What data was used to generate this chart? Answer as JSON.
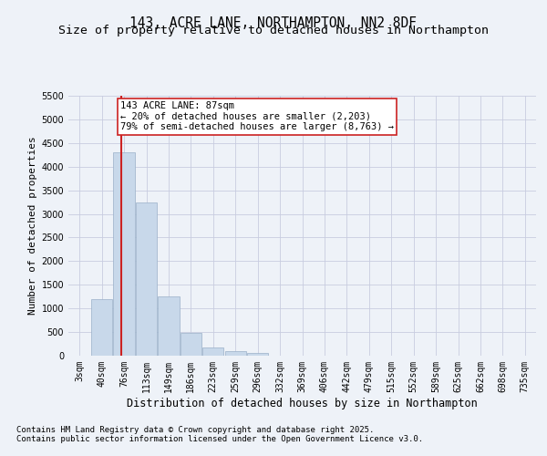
{
  "title": "143, ACRE LANE, NORTHAMPTON, NN2 8DF",
  "subtitle": "Size of property relative to detached houses in Northampton",
  "xlabel": "Distribution of detached houses by size in Northampton",
  "ylabel": "Number of detached properties",
  "categories": [
    "3sqm",
    "40sqm",
    "76sqm",
    "113sqm",
    "149sqm",
    "186sqm",
    "223sqm",
    "259sqm",
    "296sqm",
    "332sqm",
    "369sqm",
    "406sqm",
    "442sqm",
    "479sqm",
    "515sqm",
    "552sqm",
    "589sqm",
    "625sqm",
    "662sqm",
    "698sqm",
    "735sqm"
  ],
  "values": [
    0,
    1200,
    4300,
    3250,
    1250,
    490,
    170,
    90,
    50,
    0,
    0,
    0,
    0,
    0,
    0,
    0,
    0,
    0,
    0,
    0,
    0
  ],
  "bar_color": "#c8d8ea",
  "bar_edgecolor": "#9ab0c8",
  "vline_color": "#cc2222",
  "vline_pos": 1.87,
  "annotation_text": "143 ACRE LANE: 87sqm\n← 20% of detached houses are smaller (2,203)\n79% of semi-detached houses are larger (8,763) →",
  "annotation_box_edgecolor": "#cc2222",
  "ylim_max": 5500,
  "yticks": [
    0,
    500,
    1000,
    1500,
    2000,
    2500,
    3000,
    3500,
    4000,
    4500,
    5000,
    5500
  ],
  "grid_color": "#c8cce0",
  "footer1": "Contains HM Land Registry data © Crown copyright and database right 2025.",
  "footer2": "Contains public sector information licensed under the Open Government Licence v3.0.",
  "bg_color": "#eef2f8",
  "title_fontsize": 10.5,
  "subtitle_fontsize": 9.5,
  "ylabel_fontsize": 8,
  "xlabel_fontsize": 8.5,
  "tick_fontsize": 7,
  "ann_fontsize": 7.5,
  "footer_fontsize": 6.5
}
